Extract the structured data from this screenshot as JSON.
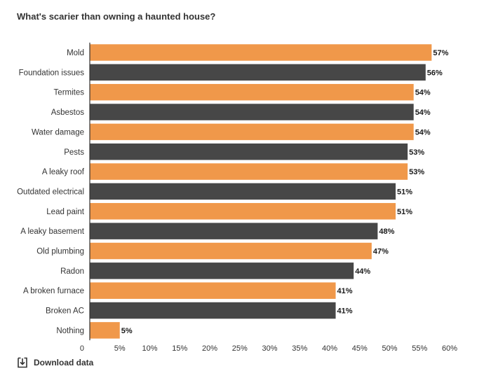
{
  "chart_data": {
    "type": "bar",
    "orientation": "horizontal",
    "title": "What's scarier than owning a haunted house?",
    "categories": [
      "Mold",
      "Foundation issues",
      "Termites",
      "Asbestos",
      "Water damage",
      "Pests",
      "A leaky roof",
      "Outdated electrical",
      "Lead paint",
      "A leaky basement",
      "Old plumbing",
      "Radon",
      "A broken furnace",
      "Broken AC",
      "Nothing"
    ],
    "values": [
      57,
      56,
      54,
      54,
      54,
      53,
      53,
      51,
      51,
      48,
      47,
      44,
      41,
      41,
      5
    ],
    "value_labels": [
      "57%",
      "56%",
      "54%",
      "54%",
      "54%",
      "53%",
      "53%",
      "51%",
      "51%",
      "48%",
      "47%",
      "44%",
      "41%",
      "41%",
      "5%"
    ],
    "colors": [
      "#f0984a",
      "#474747",
      "#f0984a",
      "#474747",
      "#f0984a",
      "#474747",
      "#f0984a",
      "#474747",
      "#f0984a",
      "#474747",
      "#f0984a",
      "#474747",
      "#f0984a",
      "#474747",
      "#f0984a"
    ],
    "xlim": [
      0,
      60
    ],
    "x_ticks": [
      0,
      5,
      10,
      15,
      20,
      25,
      30,
      35,
      40,
      45,
      50,
      55,
      60
    ],
    "x_tick_labels": [
      "0",
      "5%",
      "10%",
      "15%",
      "20%",
      "25%",
      "30%",
      "35%",
      "40%",
      "45%",
      "50%",
      "55%",
      "60%"
    ],
    "grid": false,
    "legend": "none"
  },
  "footer": {
    "download_label": "Download data",
    "download_icon": "download-icon"
  }
}
